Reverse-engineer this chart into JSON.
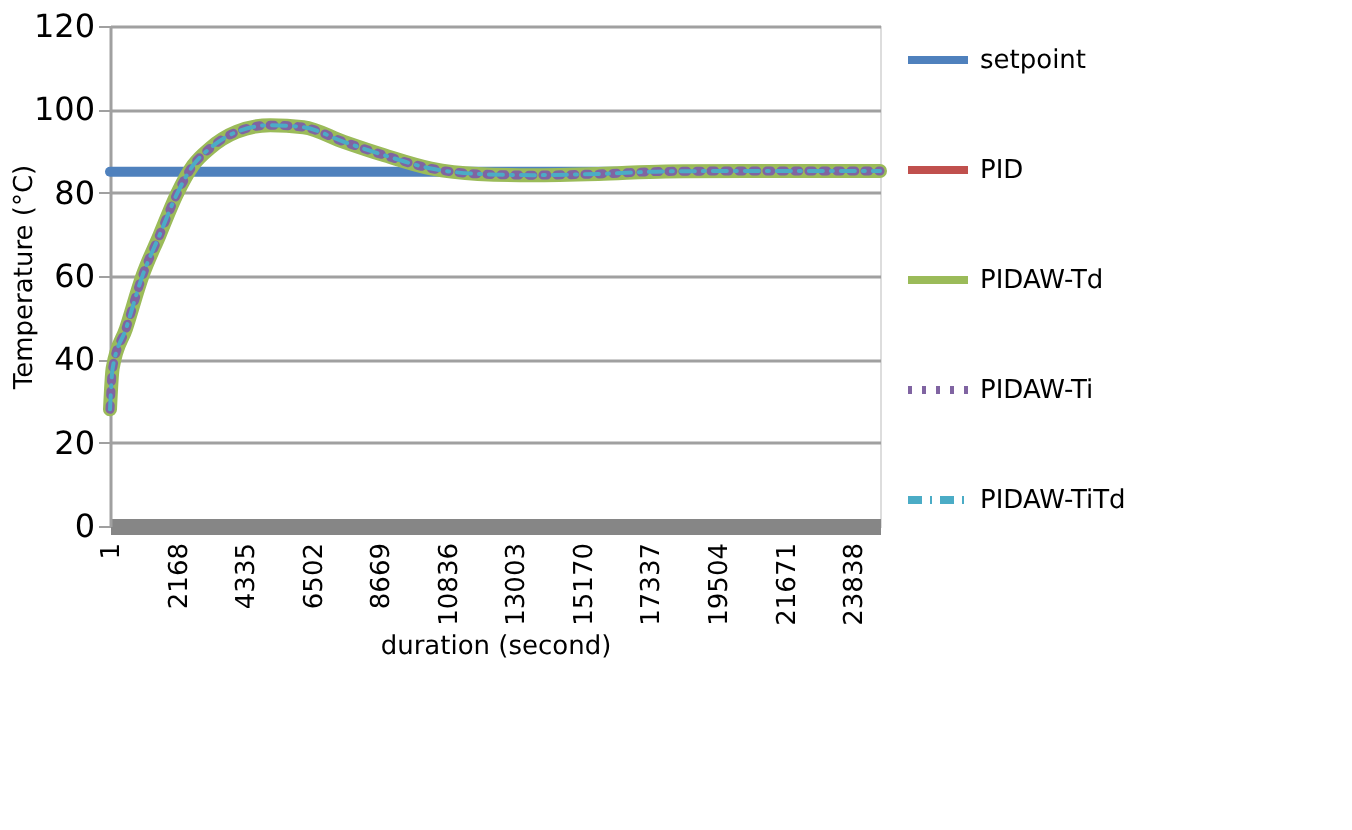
{
  "chart_data": {
    "type": "line",
    "xlabel": "duration (second)",
    "ylabel": "Temperature (°C)",
    "x": [
      1,
      85,
      516,
      1050,
      1590,
      2130,
      2670,
      3200,
      4065,
      5140,
      6210,
      7500,
      8790,
      10300,
      11800,
      13530,
      15670,
      17820,
      20400,
      24700
    ],
    "series": [
      {
        "name": "setpoint",
        "color": "#4f81bd",
        "line_style": "solid",
        "x": [
          1,
          24700
        ],
        "values": [
          85,
          85
        ]
      },
      {
        "name": "PID",
        "color": "#c0504d",
        "line_style": "solid",
        "values": [
          null,
          null,
          null,
          null,
          null,
          null,
          null,
          null,
          null,
          null,
          null,
          null,
          null,
          null,
          null,
          null,
          null,
          null,
          null,
          null
        ]
      },
      {
        "name": "PIDAW-Td",
        "color": "#9bbb59",
        "line_style": "solid",
        "values": [
          28,
          37.8,
          47.4,
          60.2,
          69.8,
          79.4,
          86.6,
          90.6,
          94.6,
          96.2,
          95.7,
          92.2,
          89.0,
          85.8,
          84.5,
          84.2,
          84.5,
          85.1,
          85.2,
          85.2
        ]
      },
      {
        "name": "PIDAW-Ti",
        "color": "#8064a2",
        "line_style": "dotted",
        "values": [
          28,
          37.8,
          47.4,
          60.2,
          69.8,
          79.4,
          86.6,
          90.6,
          94.6,
          96.2,
          95.7,
          92.2,
          89.0,
          85.8,
          84.5,
          84.2,
          84.5,
          85.1,
          85.2,
          85.2
        ]
      },
      {
        "name": "PIDAW-TiTd",
        "color": "#4bacc6",
        "line_style": "dashed",
        "values": [
          28,
          37.8,
          47.4,
          60.2,
          69.8,
          79.4,
          86.6,
          90.6,
          94.6,
          96.2,
          95.7,
          92.2,
          89.0,
          85.8,
          84.5,
          84.2,
          84.5,
          85.1,
          85.2,
          85.2
        ]
      }
    ],
    "xlim": [
      1,
      24700
    ],
    "xticks": [
      1,
      2168,
      4335,
      6502,
      8669,
      10836,
      13003,
      15170,
      17337,
      19504,
      21671,
      23838
    ],
    "ylim": [
      0,
      120
    ],
    "yticks": [
      0,
      20,
      40,
      60,
      80,
      100,
      120
    ],
    "grid": "y",
    "legend": "right",
    "marker": "none"
  }
}
